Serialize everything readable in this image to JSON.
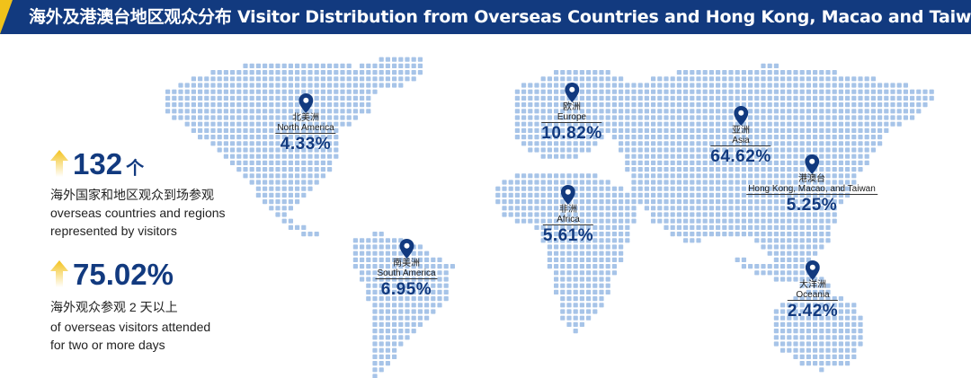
{
  "header": {
    "title": "海外及港澳台地区观众分布 Visitor Distribution from Overseas Countries and Hong Kong, Macao and Taiwan"
  },
  "stats": [
    {
      "value": "132",
      "unit": "个",
      "desc_cn": "海外国家和地区观众到场参观",
      "desc_en_line1": "overseas countries and regions",
      "desc_en_line2": "represented by visitors"
    },
    {
      "value": "75.02%",
      "unit": "",
      "desc_cn": "海外观众参观 2 天以上",
      "desc_en_line1": "of overseas visitors attended",
      "desc_en_line2": "for two or more days"
    }
  ],
  "regions": {
    "north_america": {
      "name_cn": "北美洲",
      "name_en": "North America",
      "pct": "4.33%"
    },
    "europe": {
      "name_cn": "欧洲",
      "name_en": "Europe",
      "pct": "10.82%"
    },
    "asia": {
      "name_cn": "亚洲",
      "name_en": "Asia",
      "pct": "64.62%"
    },
    "hkmt": {
      "name_cn": "港澳台",
      "name_en": "Hong Kong, Macao, and Taiwan",
      "pct": "5.25%"
    },
    "africa": {
      "name_cn": "非洲",
      "name_en": "Africa",
      "pct": "5.61%"
    },
    "south_america": {
      "name_cn": "南美洲",
      "name_en": "South America",
      "pct": "6.95%"
    },
    "oceania": {
      "name_cn": "大洋洲",
      "name_en": "Oceania",
      "pct": "2.42%"
    }
  },
  "colors": {
    "brand_blue": "#123a7f",
    "accent_yellow": "#f0c21a",
    "map_dot": "#a7c4e8"
  }
}
